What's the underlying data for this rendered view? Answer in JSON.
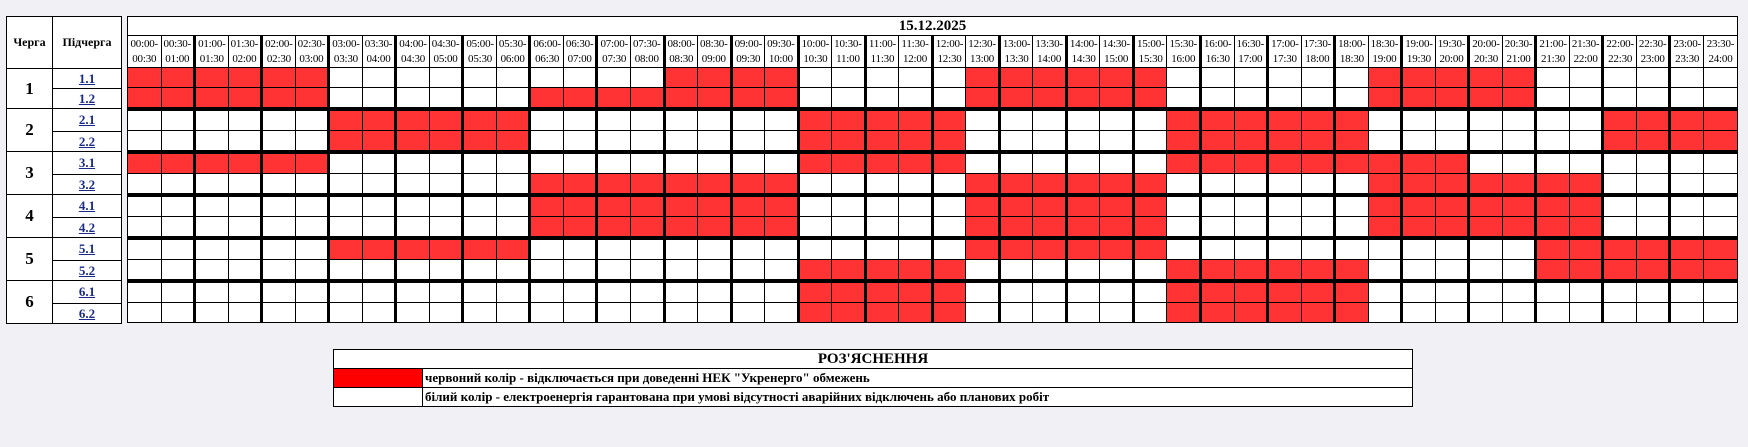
{
  "header": {
    "queue_label": "Черга",
    "subqueue_label": "Підчерга",
    "date": "15.12.2025"
  },
  "time_slots": [
    "00:00-00:30",
    "00:30-01:00",
    "01:00-01:30",
    "01:30-02:00",
    "02:00-02:30",
    "02:30-03:00",
    "03:00-03:30",
    "03:30-04:00",
    "04:00-04:30",
    "04:30-05:00",
    "05:00-05:30",
    "05:30-06:00",
    "06:00-06:30",
    "06:30-07:00",
    "07:00-07:30",
    "07:30-08:00",
    "08:00-08:30",
    "08:30-09:00",
    "09:00-09:30",
    "09:30-10:00",
    "10:00-10:30",
    "10:30-11:00",
    "11:00-11:30",
    "11:30-12:00",
    "12:00-12:30",
    "12:30-13:00",
    "13:00-13:30",
    "13:30-14:00",
    "14:00-14:30",
    "14:30-15:00",
    "15:00-15:30",
    "15:30-16:00",
    "16:00-16:30",
    "16:30-17:00",
    "17:00-17:30",
    "17:30-18:00",
    "18:00-18:30",
    "18:30-19:00",
    "19:00-19:30",
    "19:30-20:00",
    "20:00-20:30",
    "20:30-21:00",
    "21:00-21:30",
    "21:30-22:00",
    "22:00-22:30",
    "22:30-23:00",
    "23:00-23:30",
    "23:30-24:00"
  ],
  "colors": {
    "outage": "#ff3333",
    "power": "#ffffff"
  },
  "queues": [
    {
      "queue": "1",
      "subqueues": [
        {
          "label": "1.1",
          "schedule": "111111000000000011110000011111100000011111000000"
        },
        {
          "label": "1.2",
          "schedule": "111111000000111111110000011111100000011111000000"
        }
      ]
    },
    {
      "queue": "2",
      "subqueues": [
        {
          "label": "2.1",
          "schedule": "000000111111000000001111100000011111100000001111"
        },
        {
          "label": "2.2",
          "schedule": "000000111111000000001111100000011111100000001111"
        }
      ]
    },
    {
      "queue": "3",
      "subqueues": [
        {
          "label": "3.1",
          "schedule": "111111000000000000001111100000011111111100000000"
        },
        {
          "label": "3.2",
          "schedule": "000000000000111111110000011111100000011111110000"
        }
      ]
    },
    {
      "queue": "4",
      "subqueues": [
        {
          "label": "4.1",
          "schedule": "000000000000111111110000011111100000011111110000"
        },
        {
          "label": "4.2",
          "schedule": "000000000000111111110000011111100000011111110000"
        }
      ]
    },
    {
      "queue": "5",
      "subqueues": [
        {
          "label": "5.1",
          "schedule": "000000111111000000000000011111100000000000111111"
        },
        {
          "label": "5.2",
          "schedule": "000000000000000000001111100000011111100000111111"
        }
      ]
    },
    {
      "queue": "6",
      "subqueues": [
        {
          "label": "6.1",
          "schedule": "000000000000000000001111100000011111100000000000"
        },
        {
          "label": "6.2",
          "schedule": "000000000000000000001111100000011111100000000000"
        }
      ]
    }
  ],
  "legend": {
    "title": "РОЗ'ЯСНЕННЯ",
    "items": [
      {
        "color": "#ff0000",
        "text": "червоний колір - відключається при доведенні НЕК \"Укренерго\" обмежень"
      },
      {
        "color": "#ffffff",
        "text": "білий колір - електроенергія гарантована при умові відсутності аварійних відключень або планових робіт"
      }
    ]
  }
}
